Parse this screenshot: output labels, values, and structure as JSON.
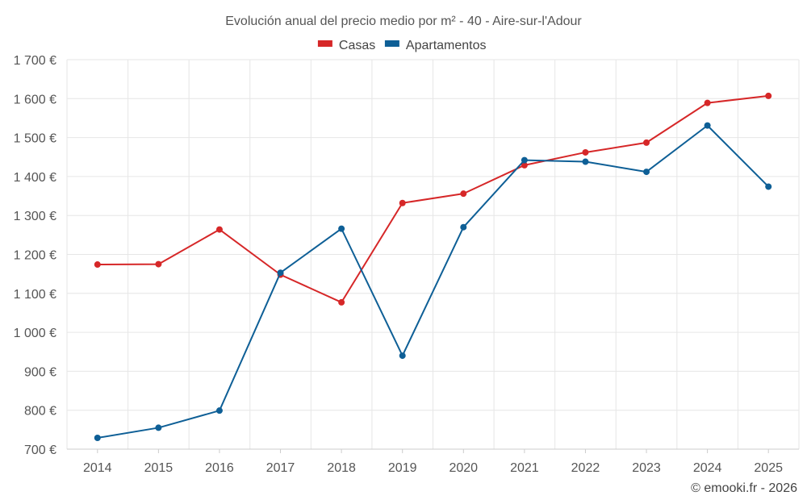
{
  "chart_data": {
    "type": "line",
    "title": "Evolución anual del precio medio por m² - 40 - Aire-sur-l'Adour",
    "categories": [
      "2014",
      "2015",
      "2016",
      "2017",
      "2018",
      "2019",
      "2020",
      "2021",
      "2022",
      "2023",
      "2024",
      "2025"
    ],
    "series": [
      {
        "name": "Casas",
        "color": "#d62728",
        "values": [
          1174,
          1175,
          1264,
          1148,
          1077,
          1332,
          1356,
          1429,
          1462,
          1487,
          1589,
          1607
        ]
      },
      {
        "name": "Apartamentos",
        "color": "#0e5f96",
        "values": [
          729,
          755,
          799,
          1153,
          1266,
          940,
          1270,
          1442,
          1438,
          1412,
          1531,
          1374
        ]
      }
    ],
    "ylim": [
      700,
      1700
    ],
    "yticks": [
      700,
      800,
      900,
      1000,
      1100,
      1200,
      1300,
      1400,
      1500,
      1600,
      1700
    ],
    "ytick_labels": [
      "700 €",
      "800 €",
      "900 €",
      "1 000 €",
      "1 100 €",
      "1 200 €",
      "1 300 €",
      "1 400 €",
      "1 500 €",
      "1 600 €",
      "1 700 €"
    ],
    "xlabel": "",
    "ylabel": "",
    "grid": true,
    "legend_position": "top-center"
  },
  "credit": "© emooki.fr - 2026"
}
